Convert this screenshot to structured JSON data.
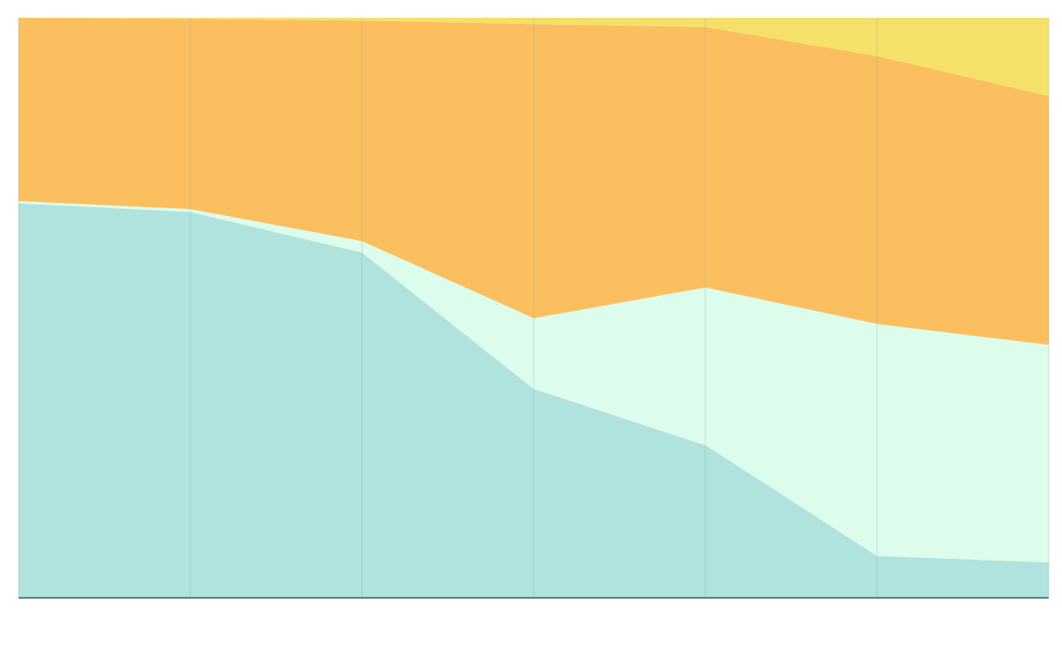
{
  "chart_data": {
    "type": "area",
    "stacked": true,
    "normalized": true,
    "x": [
      0,
      1,
      2,
      3,
      4,
      5,
      6
    ],
    "ylim": [
      0,
      100
    ],
    "grid": {
      "vertical": true,
      "horizontal": false
    },
    "legend": "none",
    "title": "",
    "xlabel": "",
    "ylabel": "",
    "series": [
      {
        "color": "#b0e2de",
        "values": [
          68.0,
          66.5,
          59.5,
          36.0,
          26.3,
          7.2,
          6.1
        ]
      },
      {
        "color": "#dcfcec",
        "values": [
          0.4,
          0.5,
          2.0,
          12.2,
          27.2,
          40.0,
          37.5
        ]
      },
      {
        "color": "#fbbf5f",
        "values": [
          31.6,
          32.8,
          38.0,
          50.7,
          44.9,
          46.2,
          42.9
        ]
      },
      {
        "color": "#f5e16a",
        "values": [
          0.0,
          0.2,
          0.5,
          1.1,
          1.6,
          6.6,
          13.5
        ]
      }
    ],
    "colors": {
      "axis": "#607d8b",
      "grid": "#8aa8a8"
    }
  }
}
